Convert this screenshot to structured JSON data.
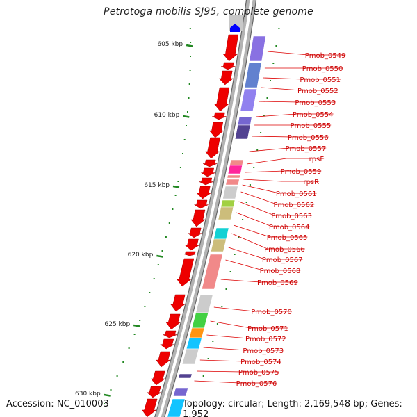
{
  "title": "Petrotoga mobilis SJ95, complete genome",
  "footer": {
    "accession": "Accession: NC_010003",
    "topology": "Topology: circular; Length: 2,169,548 bp; Genes: 1,952"
  },
  "colors": {
    "backbone": "#b3b3b3",
    "backbone_dark": "#666666",
    "gene_arrow": "#ee0000",
    "label_line": "#dd0000",
    "label_text": "#cc0000",
    "tick": "#228822",
    "dot": "#228822"
  },
  "scale_ticks": [
    {
      "label": "605 kbp"
    },
    {
      "label": "610 kbp"
    },
    {
      "label": "615 kbp"
    },
    {
      "label": "620 kbp"
    },
    {
      "label": "625 kbp"
    },
    {
      "label": "630 kbp"
    }
  ],
  "genes": [
    {
      "label": "Pmob_0549"
    },
    {
      "label": "Pmob_0550"
    },
    {
      "label": "Pmob_0551"
    },
    {
      "label": "Pmob_0552"
    },
    {
      "label": "Pmob_0553"
    },
    {
      "label": "Pmob_0554"
    },
    {
      "label": "Pmob_0555"
    },
    {
      "label": "Pmob_0556"
    },
    {
      "label": "Pmob_0557"
    },
    {
      "label": "rpsF"
    },
    {
      "label": "Pmob_0559"
    },
    {
      "label": "rpsR"
    },
    {
      "label": "Pmob_0561"
    },
    {
      "label": "Pmob_0562"
    },
    {
      "label": "Pmob_0563"
    },
    {
      "label": "Pmob_0564"
    },
    {
      "label": "Pmob_0565"
    },
    {
      "label": "Pmob_0566"
    },
    {
      "label": "Pmob_0567"
    },
    {
      "label": "Pmob_0568"
    },
    {
      "label": "Pmob_0569"
    },
    {
      "label": "Pmob_0570"
    },
    {
      "label": "Pmob_0571"
    },
    {
      "label": "Pmob_0572"
    },
    {
      "label": "Pmob_0573"
    },
    {
      "label": "Pmob_0574"
    },
    {
      "label": "Pmob_0575"
    },
    {
      "label": "Pmob_0576"
    }
  ],
  "cog_colors": [
    "#6a5acd",
    "#5577cc",
    "#7f66e0",
    "#8877ee",
    "#443388",
    "#f08080",
    "#ff1493",
    "#c8c8c8",
    "#9acd32",
    "#c8b870",
    "#00ced1",
    "#32cd32",
    "#ff8c00",
    "#00bfff",
    "#0000ff"
  ]
}
